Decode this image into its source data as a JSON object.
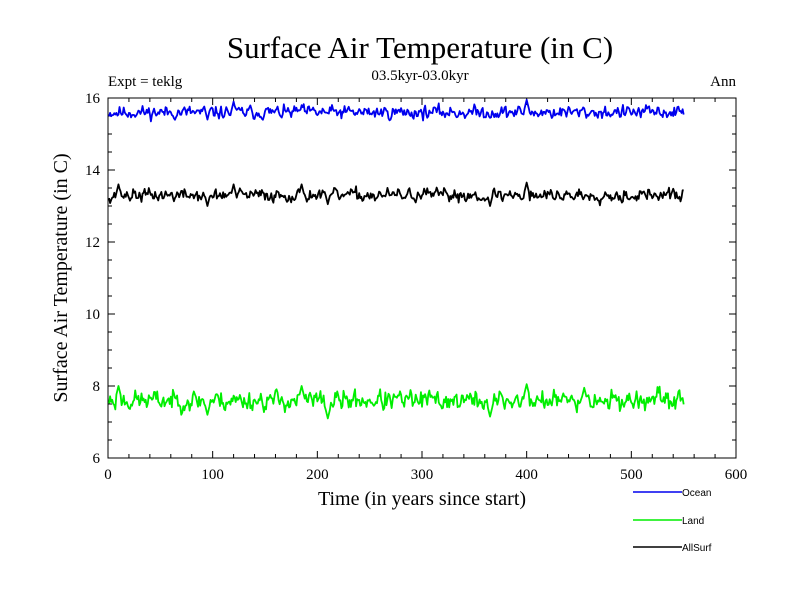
{
  "chart_data": {
    "type": "line",
    "title": "Surface Air Temperature (in C)",
    "subtitle": "03.5kyr-03.0kyr",
    "left_label": "Expt = teklg",
    "right_label": "Ann",
    "xlabel": "Time (in years since start)",
    "ylabel": "Surface Air Temperature (in C)",
    "xlim": [
      0,
      600
    ],
    "ylim": [
      6,
      16
    ],
    "xticks": [
      0,
      100,
      200,
      300,
      400,
      500,
      600
    ],
    "yticks": [
      6,
      8,
      10,
      12,
      14,
      16
    ],
    "x_range": [
      1,
      550
    ],
    "legend_position": "bottom-right",
    "series": [
      {
        "name": "Ocean",
        "color": "#0000ee",
        "mean": 15.6,
        "noise": 0.13,
        "seed": 11,
        "peaks": [
          [
            120,
            15.9
          ],
          [
            185,
            15.8
          ],
          [
            400,
            15.95
          ]
        ],
        "dips": [
          [
            95,
            15.4
          ],
          [
            365,
            15.45
          ]
        ]
      },
      {
        "name": "Land",
        "color": "#00ee00",
        "mean": 7.6,
        "noise": 0.2,
        "seed": 23,
        "peaks": [
          [
            10,
            8.0
          ],
          [
            185,
            8.0
          ],
          [
            400,
            8.05
          ],
          [
            455,
            7.95
          ]
        ],
        "dips": [
          [
            210,
            7.1
          ],
          [
            95,
            7.2
          ],
          [
            365,
            7.15
          ]
        ]
      },
      {
        "name": "AllSurf",
        "color": "#000000",
        "mean": 13.3,
        "noise": 0.13,
        "seed": 37,
        "peaks": [
          [
            10,
            13.6
          ],
          [
            120,
            13.6
          ],
          [
            185,
            13.6
          ],
          [
            400,
            13.65
          ]
        ],
        "dips": [
          [
            95,
            13.0
          ],
          [
            210,
            13.05
          ],
          [
            365,
            13.0
          ]
        ]
      }
    ]
  }
}
